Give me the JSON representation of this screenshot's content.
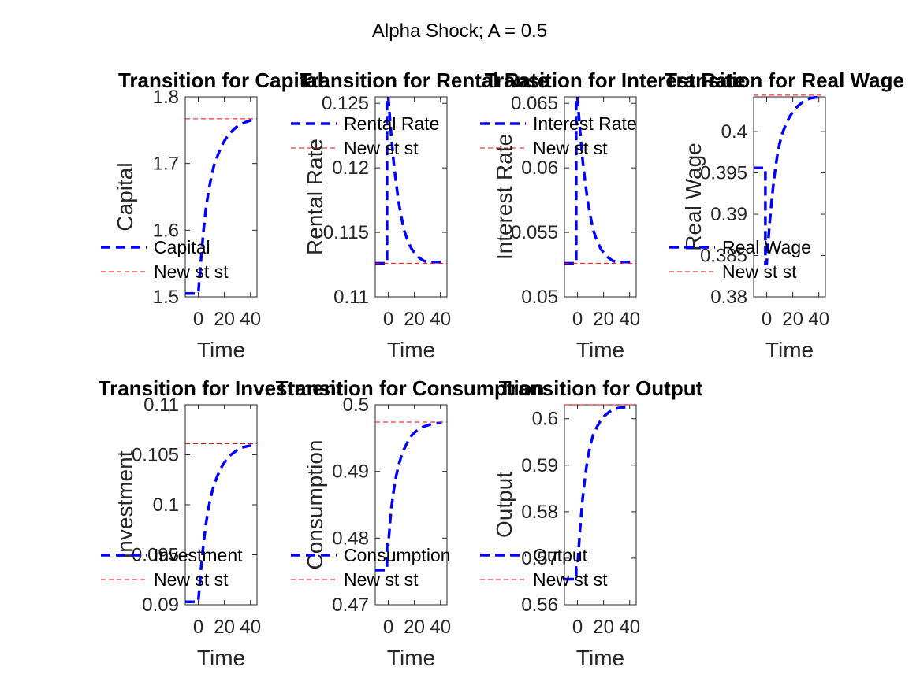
{
  "figure": {
    "suptitle": "Alpha Shock; A = 0.5"
  },
  "chart_data": [
    {
      "type": "line",
      "title": "Transition for Capital",
      "xlabel": "Time",
      "ylabel": "Capital",
      "xlim": [
        -10,
        45
      ],
      "ylim": [
        1.5,
        1.8
      ],
      "xticks": [
        "0",
        "20",
        "40"
      ],
      "yticks": [
        "1.5",
        "1.6",
        "1.7",
        "1.8"
      ],
      "grid": false,
      "legend_position": "bottom-left",
      "series": [
        {
          "name": "Capital",
          "style": "dashed",
          "color": "#0000ff",
          "x": [
            -10,
            -1,
            0,
            2,
            4,
            6,
            8,
            10,
            12,
            15,
            18,
            21,
            24,
            27,
            30,
            33,
            36,
            39,
            41
          ],
          "y": [
            1.505,
            1.505,
            1.505,
            1.555,
            1.6,
            1.635,
            1.66,
            1.68,
            1.697,
            1.713,
            1.727,
            1.737,
            1.745,
            1.751,
            1.756,
            1.759,
            1.762,
            1.764,
            1.765
          ]
        },
        {
          "name": "New st st",
          "style": "dashed-thin",
          "color": "#ff0000",
          "x": [
            -10,
            45
          ],
          "y": [
            1.767,
            1.767
          ]
        }
      ]
    },
    {
      "type": "line",
      "title": "Transition for Rental Rate",
      "xlabel": "Time",
      "ylabel": "Rental Rate",
      "xlim": [
        -10,
        45
      ],
      "ylim": [
        0.11,
        0.1255
      ],
      "xticks": [
        "0",
        "20",
        "40"
      ],
      "yticks": [
        "0.11",
        "0.115",
        "0.12",
        "0.125"
      ],
      "grid": false,
      "legend_position": "top-left",
      "series": [
        {
          "name": "Rental Rate",
          "style": "dashed",
          "color": "#0000ff",
          "x": [
            -10,
            -1,
            -1,
            0,
            2,
            4,
            6,
            8,
            10,
            12,
            15,
            18,
            21,
            24,
            27,
            30,
            33,
            36,
            41
          ],
          "y": [
            0.1126,
            0.1126,
            0.1255,
            0.1255,
            0.1228,
            0.1205,
            0.1188,
            0.1173,
            0.1162,
            0.1152,
            0.1143,
            0.1137,
            0.1133,
            0.113,
            0.1128,
            0.1127,
            0.1127,
            0.1127,
            0.1127
          ]
        },
        {
          "name": "New st st",
          "style": "dashed-thin",
          "color": "#ff0000",
          "x": [
            -10,
            45
          ],
          "y": [
            0.1126,
            0.1126
          ]
        }
      ]
    },
    {
      "type": "line",
      "title": "Transition for Interest Rate",
      "xlabel": "Time",
      "ylabel": "Interest Rate",
      "xlim": [
        -10,
        45
      ],
      "ylim": [
        0.05,
        0.0655
      ],
      "xticks": [
        "0",
        "20",
        "40"
      ],
      "yticks": [
        "0.05",
        "0.055",
        "0.06",
        "0.065"
      ],
      "grid": false,
      "legend_position": "top-left",
      "series": [
        {
          "name": "Interest Rate",
          "style": "dashed",
          "color": "#0000ff",
          "x": [
            -10,
            -1,
            -1,
            0,
            2,
            4,
            6,
            8,
            10,
            12,
            15,
            18,
            21,
            24,
            27,
            30,
            33,
            36,
            41
          ],
          "y": [
            0.0526,
            0.0526,
            0.0655,
            0.0655,
            0.0628,
            0.0605,
            0.0588,
            0.0573,
            0.0562,
            0.0552,
            0.0543,
            0.0537,
            0.0533,
            0.053,
            0.0528,
            0.0527,
            0.0527,
            0.0527,
            0.0527
          ]
        },
        {
          "name": "New st st",
          "style": "dashed-thin",
          "color": "#ff0000",
          "x": [
            -10,
            45
          ],
          "y": [
            0.0526,
            0.0526
          ]
        }
      ]
    },
    {
      "type": "line",
      "title": "Transition for Real Wage",
      "xlabel": "Time",
      "ylabel": "Real Wage",
      "xlim": [
        -10,
        45
      ],
      "ylim": [
        0.38,
        0.4042
      ],
      "xticks": [
        "0",
        "20",
        "40"
      ],
      "yticks": [
        "0.38",
        "0.385",
        "0.39",
        "0.395",
        "0.4"
      ],
      "grid": false,
      "legend_position": "bottom-left",
      "series": [
        {
          "name": "Real Wage",
          "style": "dashed",
          "color": "#0000ff",
          "x": [
            -10,
            -1,
            -1,
            0,
            2,
            4,
            6,
            8,
            10,
            12,
            15,
            18,
            21,
            24,
            27,
            30,
            33,
            36,
            41
          ],
          "y": [
            0.3956,
            0.3956,
            0.384,
            0.384,
            0.3885,
            0.392,
            0.3948,
            0.397,
            0.3986,
            0.3998,
            0.401,
            0.4019,
            0.4026,
            0.4031,
            0.4035,
            0.4038,
            0.404,
            0.4041,
            0.4042
          ]
        },
        {
          "name": "New st st",
          "style": "dashed-thin",
          "color": "#ff0000",
          "x": [
            -10,
            45
          ],
          "y": [
            0.4044,
            0.4044
          ]
        }
      ]
    },
    {
      "type": "line",
      "title": "Transition for Investment",
      "xlabel": "Time",
      "ylabel": "Investment",
      "xlim": [
        -10,
        45
      ],
      "ylim": [
        0.09,
        0.11
      ],
      "xticks": [
        "0",
        "20",
        "40"
      ],
      "yticks": [
        "0.09",
        "0.095",
        "0.1",
        "0.105",
        "0.11"
      ],
      "grid": false,
      "legend_position": "bottom-left",
      "series": [
        {
          "name": "Investment",
          "style": "dashed",
          "color": "#0000ff",
          "x": [
            -10,
            -1,
            0,
            2,
            4,
            6,
            8,
            10,
            12,
            15,
            18,
            21,
            24,
            27,
            30,
            33,
            36,
            39,
            41
          ],
          "y": [
            0.0903,
            0.0903,
            0.0903,
            0.0935,
            0.0962,
            0.0982,
            0.0998,
            0.101,
            0.102,
            0.103,
            0.1038,
            0.1044,
            0.1049,
            0.1052,
            0.1055,
            0.1057,
            0.1058,
            0.1059,
            0.1059
          ]
        },
        {
          "name": "New st st",
          "style": "dashed-thin",
          "color": "#ff0000",
          "x": [
            -10,
            45
          ],
          "y": [
            0.1061,
            0.1061
          ]
        }
      ]
    },
    {
      "type": "line",
      "title": "Transition for Consumption",
      "xlabel": "Time",
      "ylabel": "Consumption",
      "xlim": [
        -10,
        45
      ],
      "ylim": [
        0.47,
        0.5
      ],
      "xticks": [
        "0",
        "20",
        "40"
      ],
      "yticks": [
        "0.47",
        "0.48",
        "0.49",
        "0.5"
      ],
      "grid": false,
      "legend_position": "bottom-left",
      "series": [
        {
          "name": "Consumption",
          "style": "dashed",
          "color": "#0000ff",
          "x": [
            -10,
            -1,
            -1,
            0,
            2,
            4,
            6,
            8,
            10,
            12,
            15,
            18,
            21,
            24,
            27,
            30,
            33,
            36,
            41
          ],
          "y": [
            0.4752,
            0.4752,
            0.479,
            0.479,
            0.484,
            0.487,
            0.4893,
            0.491,
            0.4923,
            0.4933,
            0.4945,
            0.4954,
            0.496,
            0.4964,
            0.4967,
            0.4969,
            0.4971,
            0.4972,
            0.4973
          ]
        },
        {
          "name": "New st st",
          "style": "dashed-thin",
          "color": "#ff0000",
          "x": [
            -10,
            45
          ],
          "y": [
            0.4974,
            0.4974
          ]
        }
      ]
    },
    {
      "type": "line",
      "title": "Transition for Output",
      "xlabel": "Time",
      "ylabel": "Output",
      "xlim": [
        -10,
        45
      ],
      "ylim": [
        0.56,
        0.603
      ],
      "xticks": [
        "0",
        "20",
        "40"
      ],
      "yticks": [
        "0.56",
        "0.57",
        "0.58",
        "0.59",
        "0.6"
      ],
      "grid": false,
      "legend_position": "bottom-left",
      "series": [
        {
          "name": "Output",
          "style": "dashed",
          "color": "#0000ff",
          "x": [
            -10,
            -1,
            -1,
            0,
            2,
            4,
            6,
            8,
            10,
            12,
            15,
            18,
            21,
            24,
            27,
            30,
            33,
            36,
            41
          ],
          "y": [
            0.5655,
            0.5655,
            0.568,
            0.568,
            0.5765,
            0.583,
            0.588,
            0.5918,
            0.5945,
            0.5965,
            0.5983,
            0.5997,
            0.6007,
            0.6014,
            0.6019,
            0.6022,
            0.6024,
            0.6025,
            0.6026
          ]
        },
        {
          "name": "New st st",
          "style": "dashed-thin",
          "color": "#ff0000",
          "x": [
            -10,
            45
          ],
          "y": [
            0.603,
            0.603
          ]
        }
      ]
    }
  ]
}
